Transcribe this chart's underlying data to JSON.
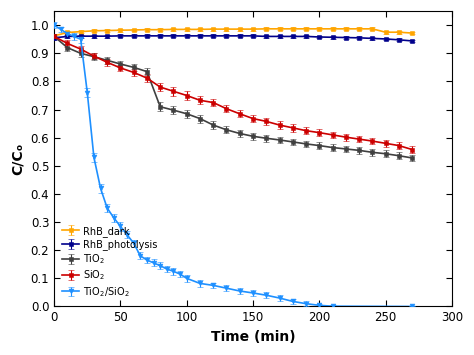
{
  "title": "",
  "xlabel": "Time (min)",
  "ylabel": "C/Cₒ",
  "xlim": [
    0,
    300
  ],
  "ylim": [
    0.0,
    1.05
  ],
  "yticks": [
    0.0,
    0.1,
    0.2,
    0.3,
    0.4,
    0.5,
    0.6,
    0.7,
    0.8,
    0.9,
    1.0
  ],
  "xticks": [
    0,
    50,
    100,
    150,
    200,
    250,
    300
  ],
  "series": [
    {
      "label": "RhB_dark",
      "color": "#FFA500",
      "marker": "s",
      "markersize": 3.0,
      "linewidth": 1.2,
      "x": [
        0,
        10,
        20,
        30,
        40,
        50,
        60,
        70,
        80,
        90,
        100,
        110,
        120,
        130,
        140,
        150,
        160,
        170,
        180,
        190,
        200,
        210,
        220,
        230,
        240,
        250,
        260,
        270
      ],
      "y": [
        0.962,
        0.974,
        0.977,
        0.98,
        0.981,
        0.982,
        0.983,
        0.984,
        0.984,
        0.985,
        0.985,
        0.985,
        0.986,
        0.986,
        0.986,
        0.986,
        0.987,
        0.987,
        0.987,
        0.987,
        0.987,
        0.987,
        0.987,
        0.987,
        0.987,
        0.975,
        0.975,
        0.972
      ],
      "yerr": [
        0.008,
        0.006,
        0.005,
        0.005,
        0.005,
        0.005,
        0.005,
        0.005,
        0.005,
        0.005,
        0.005,
        0.005,
        0.005,
        0.005,
        0.005,
        0.005,
        0.005,
        0.005,
        0.005,
        0.005,
        0.005,
        0.005,
        0.005,
        0.005,
        0.005,
        0.005,
        0.005,
        0.005
      ]
    },
    {
      "label": "RhB_photolysis",
      "color": "#00008B",
      "marker": "s",
      "markersize": 3.0,
      "linewidth": 1.2,
      "x": [
        0,
        10,
        20,
        30,
        40,
        50,
        60,
        70,
        80,
        90,
        100,
        110,
        120,
        130,
        140,
        150,
        160,
        170,
        180,
        190,
        200,
        210,
        220,
        230,
        240,
        250,
        260,
        270
      ],
      "y": [
        0.955,
        0.96,
        0.961,
        0.961,
        0.961,
        0.962,
        0.962,
        0.962,
        0.962,
        0.962,
        0.962,
        0.962,
        0.962,
        0.962,
        0.962,
        0.962,
        0.96,
        0.96,
        0.96,
        0.96,
        0.958,
        0.957,
        0.956,
        0.955,
        0.953,
        0.951,
        0.948,
        0.944
      ],
      "yerr": [
        0.008,
        0.006,
        0.005,
        0.005,
        0.005,
        0.005,
        0.005,
        0.005,
        0.005,
        0.005,
        0.005,
        0.005,
        0.005,
        0.005,
        0.005,
        0.005,
        0.005,
        0.005,
        0.005,
        0.005,
        0.005,
        0.005,
        0.005,
        0.005,
        0.005,
        0.005,
        0.005,
        0.005
      ]
    },
    {
      "label": "TiO$_2$",
      "color": "#404040",
      "marker": "s",
      "markersize": 3.0,
      "linewidth": 1.2,
      "x": [
        0,
        10,
        20,
        30,
        40,
        50,
        60,
        70,
        80,
        90,
        100,
        110,
        120,
        130,
        140,
        150,
        160,
        170,
        180,
        190,
        200,
        210,
        220,
        230,
        240,
        250,
        260,
        270
      ],
      "y": [
        0.96,
        0.92,
        0.9,
        0.888,
        0.875,
        0.862,
        0.85,
        0.835,
        0.71,
        0.698,
        0.685,
        0.668,
        0.645,
        0.628,
        0.615,
        0.605,
        0.598,
        0.592,
        0.585,
        0.578,
        0.572,
        0.565,
        0.56,
        0.555,
        0.548,
        0.543,
        0.536,
        0.528
      ],
      "yerr": [
        0.01,
        0.013,
        0.013,
        0.013,
        0.012,
        0.012,
        0.012,
        0.013,
        0.016,
        0.015,
        0.015,
        0.014,
        0.014,
        0.013,
        0.013,
        0.012,
        0.012,
        0.012,
        0.012,
        0.012,
        0.012,
        0.012,
        0.012,
        0.012,
        0.012,
        0.012,
        0.012,
        0.012
      ]
    },
    {
      "label": "SiO$_2$",
      "color": "#CC0000",
      "marker": "s",
      "markersize": 3.0,
      "linewidth": 1.2,
      "x": [
        0,
        10,
        20,
        30,
        40,
        50,
        60,
        70,
        80,
        90,
        100,
        110,
        120,
        130,
        140,
        150,
        160,
        170,
        180,
        190,
        200,
        210,
        220,
        230,
        240,
        250,
        260,
        270
      ],
      "y": [
        0.96,
        0.935,
        0.915,
        0.89,
        0.868,
        0.848,
        0.832,
        0.812,
        0.78,
        0.765,
        0.75,
        0.733,
        0.725,
        0.703,
        0.685,
        0.668,
        0.658,
        0.645,
        0.635,
        0.625,
        0.618,
        0.61,
        0.602,
        0.595,
        0.588,
        0.58,
        0.572,
        0.558
      ],
      "yerr": [
        0.01,
        0.013,
        0.012,
        0.012,
        0.012,
        0.012,
        0.012,
        0.013,
        0.015,
        0.015,
        0.015,
        0.014,
        0.014,
        0.013,
        0.013,
        0.013,
        0.013,
        0.013,
        0.013,
        0.013,
        0.012,
        0.012,
        0.012,
        0.012,
        0.012,
        0.012,
        0.012,
        0.012
      ]
    },
    {
      "label": "TiO$_2$/SiO$_2$",
      "color": "#1E90FF",
      "marker": "v",
      "markersize": 3.5,
      "linewidth": 1.2,
      "x": [
        0,
        5,
        10,
        15,
        20,
        25,
        30,
        35,
        40,
        45,
        50,
        55,
        60,
        65,
        70,
        75,
        80,
        85,
        90,
        95,
        100,
        110,
        120,
        130,
        140,
        150,
        160,
        170,
        180,
        190,
        200,
        210,
        270
      ],
      "y": [
        1.0,
        0.985,
        0.97,
        0.96,
        0.95,
        0.76,
        0.53,
        0.42,
        0.35,
        0.315,
        0.285,
        0.255,
        0.225,
        0.18,
        0.165,
        0.155,
        0.145,
        0.133,
        0.125,
        0.115,
        0.1,
        0.082,
        0.075,
        0.065,
        0.055,
        0.048,
        0.04,
        0.03,
        0.018,
        0.01,
        0.004,
        0.001,
        0.0
      ],
      "yerr": [
        0.01,
        0.01,
        0.01,
        0.012,
        0.012,
        0.015,
        0.015,
        0.015,
        0.015,
        0.015,
        0.015,
        0.013,
        0.013,
        0.013,
        0.012,
        0.012,
        0.012,
        0.012,
        0.012,
        0.012,
        0.012,
        0.011,
        0.01,
        0.01,
        0.01,
        0.01,
        0.01,
        0.01,
        0.009,
        0.008,
        0.005,
        0.003,
        0.0
      ]
    }
  ],
  "legend_loc": "lower left",
  "background_color": "#ffffff",
  "capsize": 2,
  "elinewidth": 0.8
}
